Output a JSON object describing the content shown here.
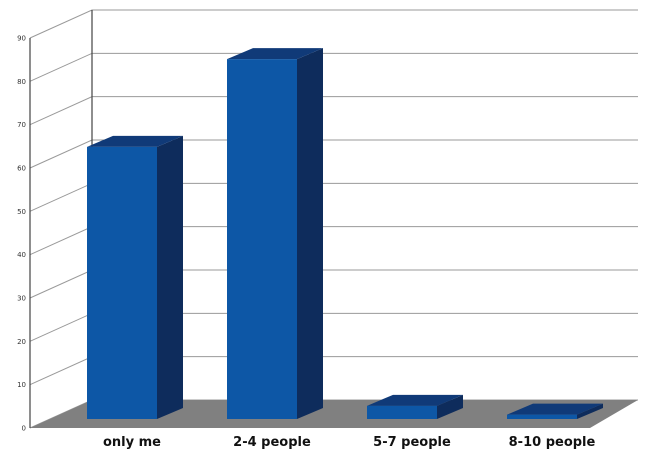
{
  "chart_data": {
    "type": "bar",
    "style": "3d",
    "categories": [
      "only me",
      "2-4 people",
      "5-7 people",
      "8-10 people"
    ],
    "values": [
      62,
      82,
      3,
      1
    ],
    "ylim": [
      0,
      90
    ],
    "yticks": [
      "0",
      "10",
      "20",
      "30",
      "40",
      "50",
      "60",
      "70",
      "80",
      "90"
    ],
    "grid": true,
    "title": "",
    "xlabel": "",
    "ylabel": "",
    "colors": {
      "bar_front": "#0d57a6",
      "bar_side": "#0e2c5c",
      "bar_top": "#103a78",
      "floor": "#808080",
      "grid": "#9a9a9a",
      "wall": "#444444"
    }
  }
}
